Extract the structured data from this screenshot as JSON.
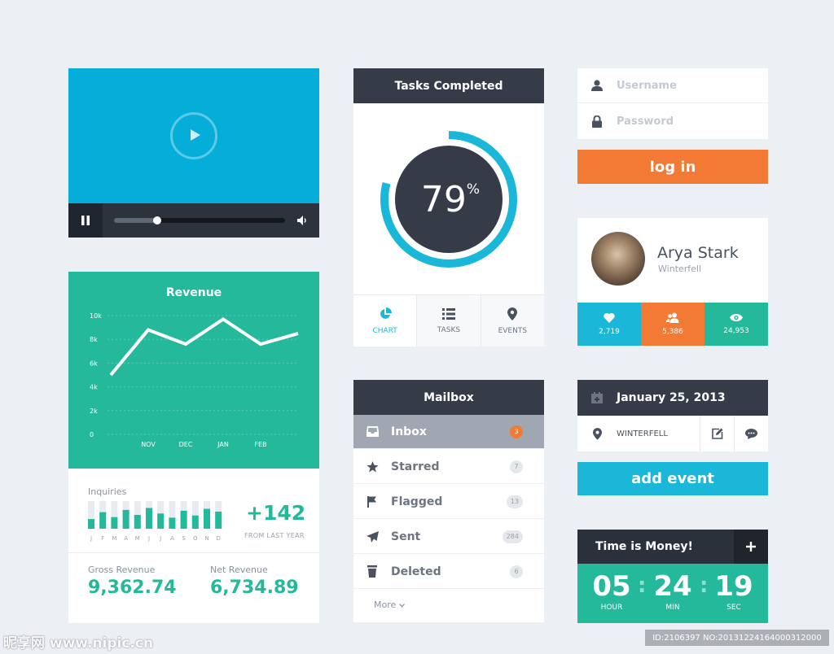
{
  "video": {
    "progress": 0.25
  },
  "revenue": {
    "title": "Revenue",
    "inquiries_label": "Inquiries",
    "inquiries_change": "+142",
    "from_last_year": "FROM LAST YEAR",
    "gross_label": "Gross Revenue",
    "gross_value": "9,362.74",
    "net_label": "Net Revenue",
    "net_value": "6,734.89"
  },
  "chart_data": [
    {
      "type": "line",
      "title": "Revenue",
      "x": [
        "",
        "NOV",
        "DEC",
        "JAN",
        "FEB",
        ""
      ],
      "y_ticks": [
        "10k",
        "8k",
        "6k",
        "4k",
        "2k",
        "0"
      ],
      "ylim": [
        0,
        10000
      ],
      "values": [
        5000,
        8800,
        7600,
        9700,
        7600,
        8500
      ],
      "grid": true,
      "line_color": "#ffffff"
    },
    {
      "type": "bar",
      "title": "Inquiries",
      "categories": [
        "J",
        "F",
        "M",
        "A",
        "M",
        "J",
        "J",
        "A",
        "S",
        "O",
        "N",
        "D"
      ],
      "values": [
        35,
        60,
        42,
        68,
        50,
        75,
        55,
        40,
        65,
        48,
        72,
        62
      ],
      "max": 100,
      "bar_color": "#24b99a",
      "track_color": "#e8ebef"
    }
  ],
  "tasks": {
    "title": "Tasks Completed",
    "percent": 79,
    "percent_sign": "%",
    "tabs": [
      {
        "label": "CHART",
        "icon": "pie-chart-icon"
      },
      {
        "label": "TASKS",
        "icon": "list-icon"
      },
      {
        "label": "EVENTS",
        "icon": "map-pin-icon"
      }
    ]
  },
  "mailbox": {
    "title": "Mailbox",
    "items": [
      {
        "label": "Inbox",
        "count": "3",
        "icon": "inbox-icon"
      },
      {
        "label": "Starred",
        "count": "7",
        "icon": "star-icon"
      },
      {
        "label": "Flagged",
        "count": "13",
        "icon": "flag-icon"
      },
      {
        "label": "Sent",
        "count": "284",
        "icon": "send-icon"
      },
      {
        "label": "Deleted",
        "count": "6",
        "icon": "trash-icon"
      }
    ],
    "more": "More"
  },
  "login": {
    "username_placeholder": "Username",
    "password_placeholder": "Password",
    "button": "log in"
  },
  "profile": {
    "name": "Arya Stark",
    "location": "Winterfell",
    "stats": [
      {
        "value": "2,719",
        "icon": "heart-icon"
      },
      {
        "value": "5,386",
        "icon": "users-icon"
      },
      {
        "value": "24,953",
        "icon": "eye-icon"
      }
    ]
  },
  "event": {
    "date": "January 25, 2013",
    "location": "WINTERFELL",
    "add_button": "add event"
  },
  "timer": {
    "title": "Time is Money!",
    "hour": "05",
    "hour_label": "HOUR",
    "min": "24",
    "min_label": "MIN",
    "sec": "19",
    "sec_label": "SEC"
  },
  "watermark": {
    "left": "昵享网 www.nipic.cn",
    "right": "ID:2106397 NO:20131224164000312000"
  },
  "colors": {
    "teal": "#24b99a",
    "blue": "#1bb7d8",
    "orange": "#f37a34",
    "dark": "#353c48"
  }
}
